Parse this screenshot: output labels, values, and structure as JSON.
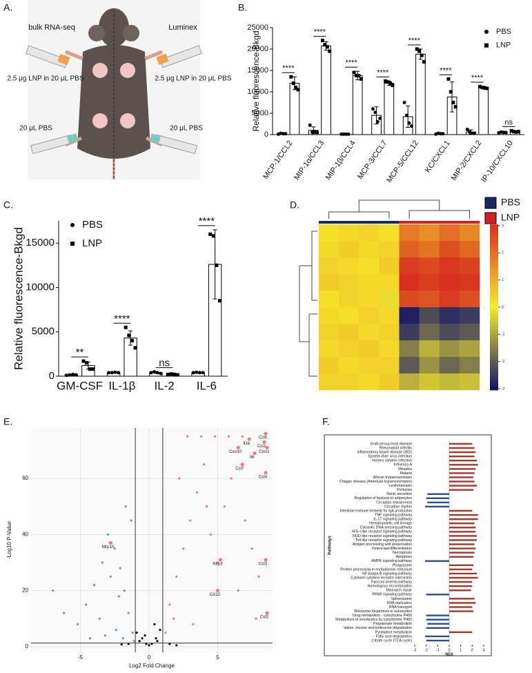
{
  "panel_a": {
    "label": "A.",
    "left_title": "bulk RNA-seq",
    "right_title": "Luminex",
    "left_top": "2.5 μg LNP in 20 μL PBS",
    "right_top": "2.5 μg LNP in 20 μL PBS",
    "left_bottom": "20 μL PBS",
    "right_bottom": "20 μL PBS"
  },
  "chart_data": [
    {
      "type": "bar",
      "panel_label": "B.",
      "ylabel": "Relative fluorescence-Bkgd",
      "categories": [
        "MCP-1/CCL2",
        "MIP-1α/CCL3",
        "MIP-1β/CCL4",
        "MCP-3/CCL7",
        "MCP-5/CCL12",
        "KC/CXCL1",
        "MIP-2/CXCL2",
        "IP-10/CXCL10"
      ],
      "series": [
        {
          "name": "PBS",
          "marker": "circle",
          "color": "#000000",
          "values": [
            200,
            1000,
            100,
            4500,
            4200,
            200,
            600,
            500
          ],
          "errors": [
            100,
            800,
            50,
            2000,
            2500,
            150,
            500,
            200
          ],
          "points": [
            [
              100,
              300,
              200,
              200
            ],
            [
              2200,
              600,
              700,
              500
            ],
            [
              100,
              100,
              100,
              100
            ],
            [
              6000,
              5200,
              3000,
              3800
            ],
            [
              7500,
              4500,
              2700,
              2000
            ],
            [
              100,
              300,
              200,
              200
            ],
            [
              1200,
              600,
              300,
              300
            ],
            [
              400,
              600,
              500,
              500
            ]
          ]
        },
        {
          "name": "LNP",
          "marker": "square",
          "color": "#000000",
          "values": [
            12000,
            20700,
            13800,
            12000,
            18800,
            8800,
            11000,
            700
          ],
          "errors": [
            1500,
            1000,
            1000,
            500,
            1200,
            3500,
            300,
            200
          ],
          "points": [
            [
              13500,
              12000,
              11000,
              10500
            ],
            [
              22000,
              21000,
              20500,
              19500
            ],
            [
              14500,
              13800,
              13800,
              13000
            ],
            [
              12500,
              12300,
              12000,
              11500
            ],
            [
              20000,
              19500,
              18500,
              17000
            ],
            [
              13000,
              10000,
              7500,
              6500
            ],
            [
              11200,
              11000,
              10900,
              10800
            ],
            [
              900,
              700,
              600,
              700
            ]
          ]
        }
      ],
      "significance": [
        "****",
        "****",
        "****",
        "****",
        "****",
        "****",
        "****",
        "ns"
      ],
      "ylim": [
        0,
        25000
      ],
      "yticks": [
        0,
        5000,
        10000,
        15000,
        20000,
        25000
      ],
      "legend": "upper right"
    },
    {
      "type": "bar",
      "panel_label": "C.",
      "ylabel": "Relative fluorescence-Bkgd",
      "categories": [
        "GM-CSF",
        "IL-1β",
        "IL-2",
        "IL-6"
      ],
      "series": [
        {
          "name": "PBS",
          "marker": "circle",
          "color": "#000000",
          "values": [
            150,
            400,
            400,
            400
          ],
          "errors": [
            50,
            30,
            80,
            30
          ],
          "points": [
            [
              100,
              150,
              200,
              150
            ],
            [
              400,
              400,
              450,
              400
            ],
            [
              400,
              500,
              400,
              300
            ],
            [
              400,
              450,
              400,
              400
            ]
          ]
        },
        {
          "name": "LNP",
          "marker": "square",
          "color": "#000000",
          "values": [
            1200,
            4300,
            200,
            12600
          ],
          "errors": [
            400,
            800,
            50,
            3900
          ],
          "points": [
            [
              1700,
              1500,
              800,
              800
            ],
            [
              5500,
              4600,
              4000,
              3200
            ],
            [
              200,
              250,
              200,
              150
            ],
            [
              16000,
              15800,
              12500,
              8500
            ]
          ]
        }
      ],
      "significance": [
        "**",
        "****",
        "ns",
        "****"
      ],
      "ylim": [
        0,
        17500
      ],
      "yticks": [
        0,
        5000,
        10000,
        15000
      ],
      "legend": "upper left"
    },
    {
      "type": "heatmap",
      "panel_label": "D.",
      "groups": [
        {
          "name": "PBS",
          "color": "#1b2a5c"
        },
        {
          "name": "LNP",
          "color": "#d42020"
        }
      ],
      "column_group": [
        "PBS",
        "PBS",
        "PBS",
        "PBS",
        "LNP",
        "LNP",
        "LNP",
        "LNP"
      ],
      "values": [
        [
          0.2,
          0.3,
          0.4,
          0.2,
          1.8,
          1.5,
          2.0,
          1.6
        ],
        [
          0.3,
          0.5,
          0.3,
          0.4,
          2.2,
          1.9,
          2.5,
          2.1
        ],
        [
          0.4,
          0.3,
          0.2,
          0.5,
          2.8,
          2.6,
          2.9,
          2.7
        ],
        [
          0.5,
          0.4,
          0.3,
          0.3,
          3.0,
          2.8,
          3.0,
          2.9
        ],
        [
          0.2,
          0.4,
          0.3,
          -0.2,
          2.6,
          2.4,
          2.8,
          2.5
        ],
        [
          0.3,
          0.2,
          0.4,
          0.3,
          -2.8,
          -2.2,
          -2.6,
          -2.4
        ],
        [
          0.4,
          0.5,
          0.3,
          0.4,
          -2.4,
          -1.8,
          -2.2,
          -2.0
        ],
        [
          0.3,
          0.4,
          0.5,
          0.3,
          -1.5,
          -0.8,
          -1.2,
          -1.0
        ],
        [
          0.5,
          0.3,
          0.4,
          0.4,
          -2.0,
          -1.2,
          -1.8,
          -1.5
        ],
        [
          0.4,
          0.4,
          0.3,
          0.5,
          -0.8,
          -0.5,
          -0.7,
          -0.6
        ]
      ],
      "zlim": [
        -3,
        3
      ],
      "zticks": [
        -3,
        -2,
        -1,
        0,
        1,
        2,
        3
      ],
      "colorscale": [
        "#10106a",
        "#f7ec2a",
        "#d7301f"
      ]
    },
    {
      "type": "scatter",
      "panel_label": "E.",
      "xlabel": "Log2 Fold Change",
      "ylabel": "-Log10 P-Value",
      "series": [
        {
          "color": "#5b9bd5",
          "x": [
            -1.2,
            -1.5,
            -1.8,
            -2.1,
            -2.5,
            -3.0,
            -3.4,
            -4.0,
            -4.6,
            -5.2,
            -1.3,
            -1.7,
            -2.2,
            -2.8,
            -3.6,
            -1.1,
            -1.9,
            -2.4,
            -3.2,
            -6.2,
            -7.0,
            -4.3
          ],
          "y": [
            5,
            12,
            20,
            28,
            35,
            40,
            30,
            22,
            15,
            8,
            45,
            50,
            18,
            25,
            10,
            2,
            3,
            6,
            4,
            12,
            20,
            3
          ]
        },
        {
          "color": "#f07b72",
          "x": [
            1.2,
            1.5,
            2,
            2.5,
            3,
            3.5,
            4,
            4.5,
            5,
            5.5,
            6,
            6.5,
            7,
            7.5,
            8,
            1.8,
            2.8,
            3.8,
            4.8,
            5.8,
            6.8,
            7.8,
            2.2,
            3.2,
            4.2
          ],
          "y": [
            5,
            15,
            25,
            35,
            45,
            55,
            65,
            40,
            30,
            50,
            60,
            20,
            45,
            35,
            25,
            10,
            75,
            75,
            75,
            75,
            75,
            10,
            60,
            8,
            50
          ]
        },
        {
          "color": "#000000",
          "x": [
            -0.9,
            -0.5,
            -0.2,
            0,
            0.2,
            0.5,
            0.8,
            -0.7,
            0.4,
            -0.3,
            0.6,
            -1.5,
            1.5,
            2,
            -2
          ],
          "y": [
            5,
            3,
            1,
            0.5,
            1,
            3,
            6,
            2,
            8,
            4,
            2,
            1,
            1,
            0.5,
            0.8
          ]
        }
      ],
      "annotations": [
        {
          "text": "Il1b",
          "x": 7.3,
          "y": 74
        },
        {
          "text": "Ccl5",
          "x": 8.5,
          "y": 76
        },
        {
          "text": "Ccl2",
          "x": 8.4,
          "y": 73
        },
        {
          "text": "Cxcl1",
          "x": 8.6,
          "y": 71
        },
        {
          "text": "Cxcl10",
          "x": 6.5,
          "y": 71
        },
        {
          "text": "Il6",
          "x": 7.7,
          "y": 69
        },
        {
          "text": "Ccl7",
          "x": 6.8,
          "y": 65
        },
        {
          "text": "Ccl4",
          "x": 8.5,
          "y": 62
        },
        {
          "text": "Nlrp3",
          "x": 5.2,
          "y": 31
        },
        {
          "text": "Ccl3",
          "x": 8.5,
          "y": 31
        },
        {
          "text": "Ccl12",
          "x": 5,
          "y": 20
        },
        {
          "text": "Csf2",
          "x": 8.6,
          "y": 12
        },
        {
          "text": "Nlrp10",
          "x": -2.8,
          "y": 37
        }
      ],
      "annotation_color": "#f07b72",
      "vlines": [
        -1,
        1
      ],
      "hline": 1.3,
      "xlim": [
        -8.6,
        9
      ],
      "ylim": [
        -2,
        78
      ],
      "xticks": [
        -5,
        0,
        5
      ],
      "yticks": [
        0,
        20,
        40,
        60
      ],
      "grid": true
    },
    {
      "type": "bar",
      "orientation": "horizontal",
      "panel_label": "F.",
      "xlabel": "NES",
      "ylabel": "Pathways",
      "categories": [
        "Graft-versus-host disease",
        "Rheumatoid arthritis",
        "Inflammatory bowel disease (IBD)",
        "Epstein-Barr virus infection",
        "Herpes simplex infection",
        "Influenza A",
        "Measles",
        "Malaria",
        "African trypanosomiasis",
        "Chagas disease (American trypanosomiasis)",
        "Leishmaniasis",
        "Pertussis",
        "Renin secretion",
        "Regulation of lipolysis in adipocytes",
        "Circadian entrainment",
        "Circadian rhythm",
        "Intestinal immune network for IgA production",
        "TNF signaling pathway",
        "IL-17 signaling pathway",
        "Hematopoietic cell lineage",
        "Cytosolic DNA-sensing pathway",
        "RIG-I-like receptor signaling pathway",
        "NOD-like receptor signaling pathway",
        "Toll-like receptor signaling pathway",
        "Antigen processing and presentation",
        "Osteoclast differentiation",
        "Necroptosis",
        "Apoptosis",
        "AMPK signaling pathway",
        "Phagosome",
        "Protein processing in endoplasmic reticulum",
        "NF-kappa B signaling pathway",
        "Cytokine-cytokine receptor interaction",
        "Fanconi anemia pathway",
        "Homologous recombination",
        "Mismatch repair",
        "PPAR signaling pathway",
        "Spliceosome",
        "DNA replication",
        "RNA transport",
        "Ribosome biogenesis in eukaryotes",
        "Drug metabolism - cytochrome P450",
        "Metabolism of xenobiotics by cytochrome P450",
        "Propanoate metabolism",
        "Valine, leucine and isoleucine degradation",
        "Pyrimidine metabolism",
        "Fatty acid degradation",
        "Citrate cycle (TCA cycle)"
      ],
      "values": [
        2.0,
        2.2,
        2.3,
        2.2,
        2.4,
        2.5,
        2.3,
        2.2,
        2.1,
        2.2,
        2.4,
        2.1,
        -1.9,
        -2.0,
        -1.9,
        -2.1,
        2.0,
        2.5,
        2.5,
        2.2,
        2.3,
        2.3,
        2.4,
        2.4,
        2.2,
        2.3,
        2.2,
        2.1,
        -2.1,
        2.1,
        2.0,
        2.4,
        2.5,
        2.0,
        2.0,
        1.9,
        -2.0,
        2.2,
        2.3,
        2.0,
        2.1,
        -2.0,
        -2.0,
        -1.9,
        -2.0,
        2.0,
        -2.1,
        -2.0
      ],
      "colors": {
        "positive": "#a3372d",
        "negative": "#2c4d8e"
      },
      "xlim": [
        -3,
        3
      ],
      "xticks": [
        -3,
        -2,
        -1,
        0,
        1,
        2,
        3
      ]
    }
  ]
}
